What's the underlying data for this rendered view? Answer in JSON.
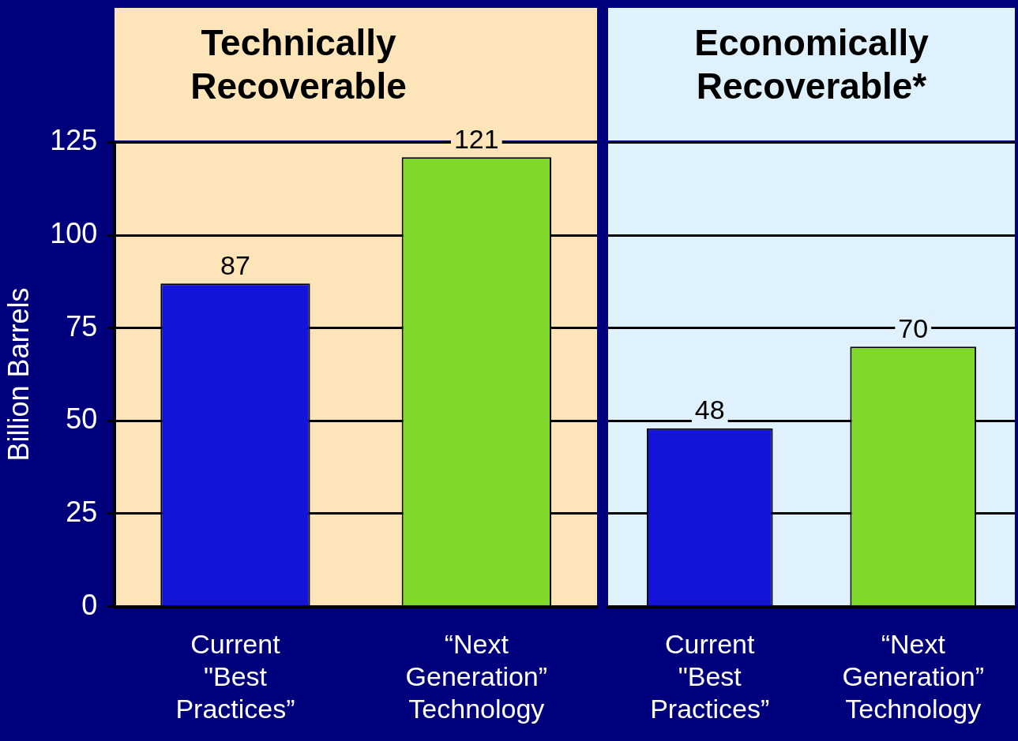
{
  "chart_data": [
    {
      "type": "bar",
      "title": "Technically Recoverable",
      "ylabel": "Billion Barrels",
      "categories": [
        "Current \"Best Practices”",
        "“Next Generation” Technology"
      ],
      "values": [
        87,
        121
      ],
      "colors": [
        "#1414d8",
        "#7fd82a"
      ],
      "ylim": [
        0,
        125
      ],
      "yticks": [
        0,
        25,
        50,
        75,
        100,
        125
      ],
      "grid": "y",
      "data_labels": true,
      "legend": false
    },
    {
      "type": "bar",
      "title": "Economically Recoverable*",
      "categories": [
        "Current \"Best Practices”",
        "“Next Generation” Technology"
      ],
      "values": [
        48,
        70
      ],
      "colors": [
        "#1414d8",
        "#7fd82a"
      ],
      "ylim": [
        0,
        125
      ],
      "yticks": [
        0,
        25,
        50,
        75,
        100,
        125
      ],
      "grid": "y",
      "data_labels": true,
      "legend": false,
      "tick_labels": "x"
    }
  ]
}
